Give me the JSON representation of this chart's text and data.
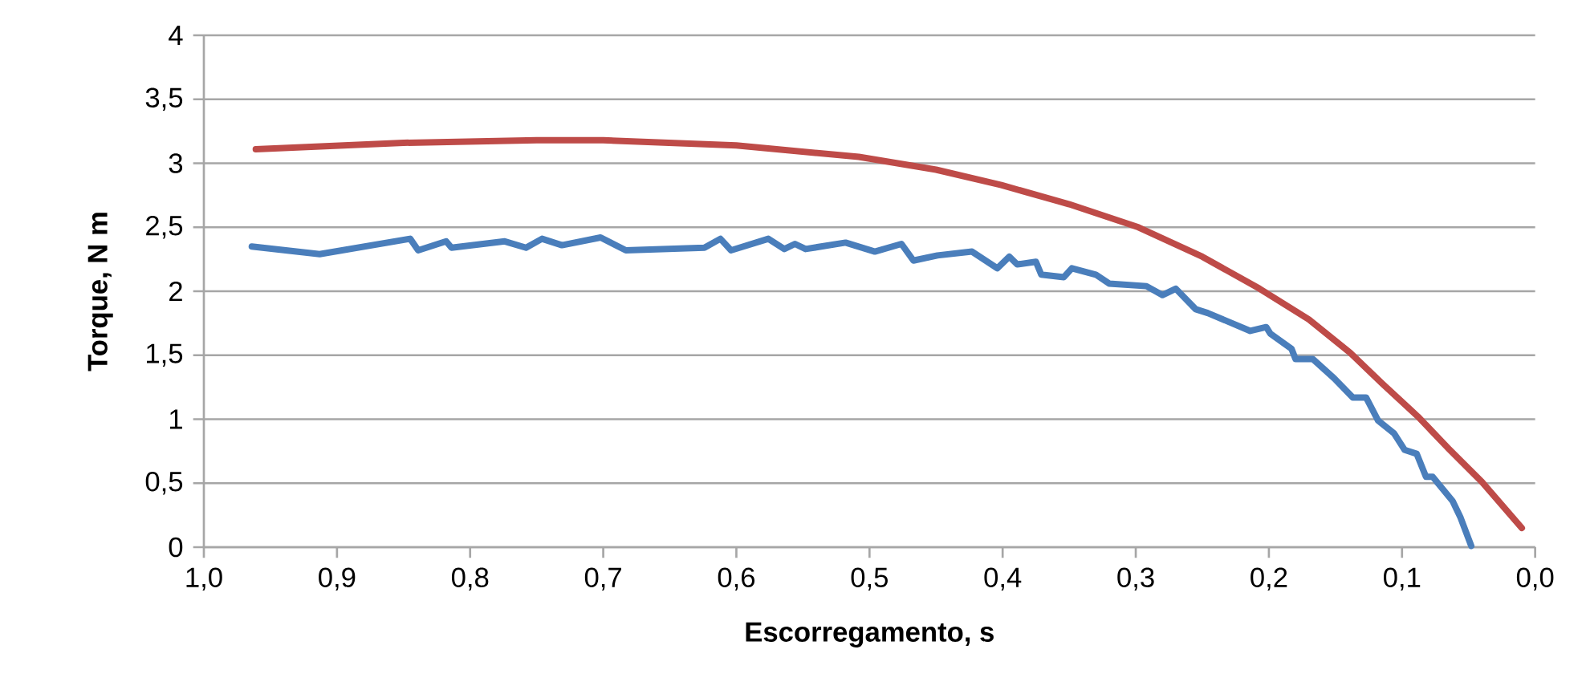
{
  "chart_data": {
    "type": "line",
    "xlabel": "Escorregamento, s",
    "ylabel": "Torque, N m",
    "xlim": [
      1.0,
      0.0
    ],
    "xticks": [
      {
        "value": 1.0,
        "label": "1,0"
      },
      {
        "value": 0.9,
        "label": "0,9"
      },
      {
        "value": 0.8,
        "label": "0,8"
      },
      {
        "value": 0.7,
        "label": "0,7"
      },
      {
        "value": 0.6,
        "label": "0,6"
      },
      {
        "value": 0.5,
        "label": "0,5"
      },
      {
        "value": 0.4,
        "label": "0,4"
      },
      {
        "value": 0.3,
        "label": "0,3"
      },
      {
        "value": 0.2,
        "label": "0,2"
      },
      {
        "value": 0.1,
        "label": "0,1"
      },
      {
        "value": 0.0,
        "label": "0,0"
      }
    ],
    "ylim": [
      0,
      4
    ],
    "yticks": [
      0,
      {
        "value": 0.5,
        "label": "0,5"
      },
      1,
      {
        "value": 1.5,
        "label": "1,5"
      },
      2,
      {
        "value": 2.5,
        "label": "2,5"
      },
      3,
      {
        "value": 3.5,
        "label": "3,5"
      },
      4
    ],
    "grid": "y",
    "marker": "none",
    "line_style": "solid",
    "series": [
      {
        "color": "#4a7ebb",
        "x": [
          0.964,
          0.913,
          0.845,
          0.839,
          0.818,
          0.814,
          0.774,
          0.758,
          0.746,
          0.731,
          0.702,
          0.683,
          0.624,
          0.612,
          0.604,
          0.576,
          0.564,
          0.556,
          0.548,
          0.518,
          0.496,
          0.476,
          0.467,
          0.449,
          0.423,
          0.404,
          0.395,
          0.389,
          0.375,
          0.371,
          0.354,
          0.348,
          0.33,
          0.32,
          0.292,
          0.28,
          0.27,
          0.255,
          0.246,
          0.214,
          0.202,
          0.199,
          0.183,
          0.18,
          0.167,
          0.151,
          0.137,
          0.127,
          0.118,
          0.106,
          0.098,
          0.089,
          0.082,
          0.077,
          0.062,
          0.056,
          0.048
        ],
        "values": [
          2.35,
          2.29,
          2.41,
          2.32,
          2.39,
          2.34,
          2.39,
          2.34,
          2.41,
          2.36,
          2.42,
          2.32,
          2.34,
          2.41,
          2.32,
          2.41,
          2.33,
          2.37,
          2.33,
          2.38,
          2.31,
          2.37,
          2.24,
          2.28,
          2.31,
          2.18,
          2.27,
          2.21,
          2.23,
          2.13,
          2.11,
          2.18,
          2.13,
          2.06,
          2.04,
          1.97,
          2.02,
          1.86,
          1.83,
          1.69,
          1.72,
          1.67,
          1.55,
          1.47,
          1.47,
          1.32,
          1.17,
          1.17,
          0.99,
          0.89,
          0.76,
          0.73,
          0.55,
          0.55,
          0.36,
          0.23,
          0.01
        ]
      },
      {
        "color": "#be4b48",
        "x": [
          0.961,
          0.85,
          0.75,
          0.7,
          0.6,
          0.508,
          0.45,
          0.401,
          0.35,
          0.298,
          0.25,
          0.207,
          0.17,
          0.139,
          0.115,
          0.088,
          0.065,
          0.04,
          0.01
        ],
        "values": [
          3.11,
          3.16,
          3.18,
          3.18,
          3.14,
          3.05,
          2.95,
          2.83,
          2.68,
          2.5,
          2.27,
          2.02,
          1.78,
          1.52,
          1.28,
          1.02,
          0.77,
          0.51,
          0.15
        ]
      }
    ]
  }
}
